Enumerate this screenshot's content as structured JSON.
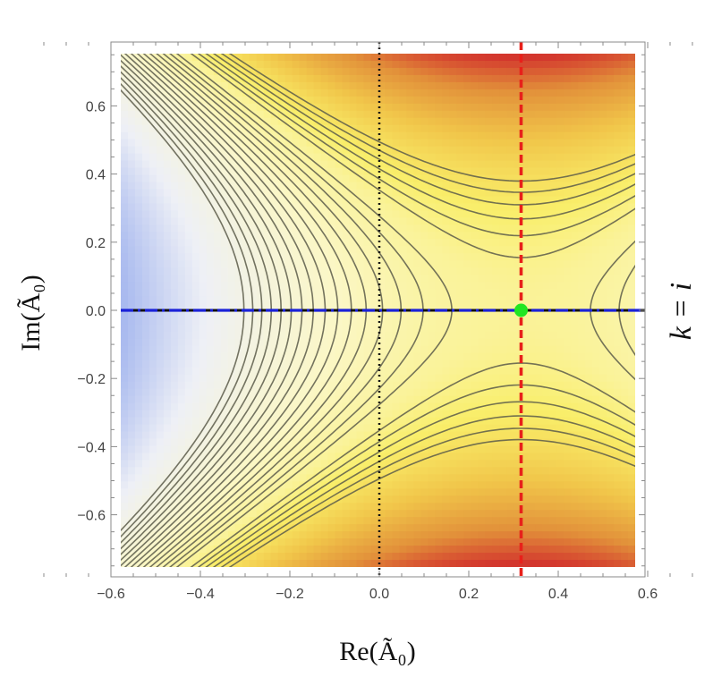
{
  "chart_data": {
    "type": "contour",
    "xlabel": "Re(Ã₀)",
    "ylabel": "Im(Ã₀)",
    "side_label": "k = i",
    "xlim": [
      -0.76,
      0.76
    ],
    "ylim": [
      -0.76,
      0.76
    ],
    "x_ticks": [
      -0.6,
      -0.4,
      -0.2,
      0.0,
      0.2,
      0.4,
      0.6
    ],
    "x_tick_labels": [
      "−0.6",
      "−0.4",
      "−0.2",
      "0.0",
      "0.2",
      "0.4",
      "0.6"
    ],
    "y_ticks": [
      0.6,
      0.4,
      0.2,
      0.0,
      -0.2,
      -0.4,
      -0.6
    ],
    "y_tick_labels": [
      "0.6",
      "0.4",
      "0.2",
      "0.0",
      "−0.2",
      "−0.4",
      "−0.6"
    ],
    "saddle_point": {
      "x": 0.317,
      "y": 0.0
    },
    "saddle_x": 0.317,
    "colormap": [
      "#2f56e6",
      "#9fb2ee",
      "#eef0f6",
      "#fbf7c6",
      "#f9ee6a",
      "#f1c64a",
      "#e2913a",
      "#d0252b"
    ],
    "lines": {
      "black_dotted_x": 0.0,
      "red_dashed_x": 0.317,
      "blue_dashdot_y": 0.0,
      "red_color": "#e8201a",
      "blue_color": "#1a21d8",
      "point_color": "#22e622"
    }
  }
}
